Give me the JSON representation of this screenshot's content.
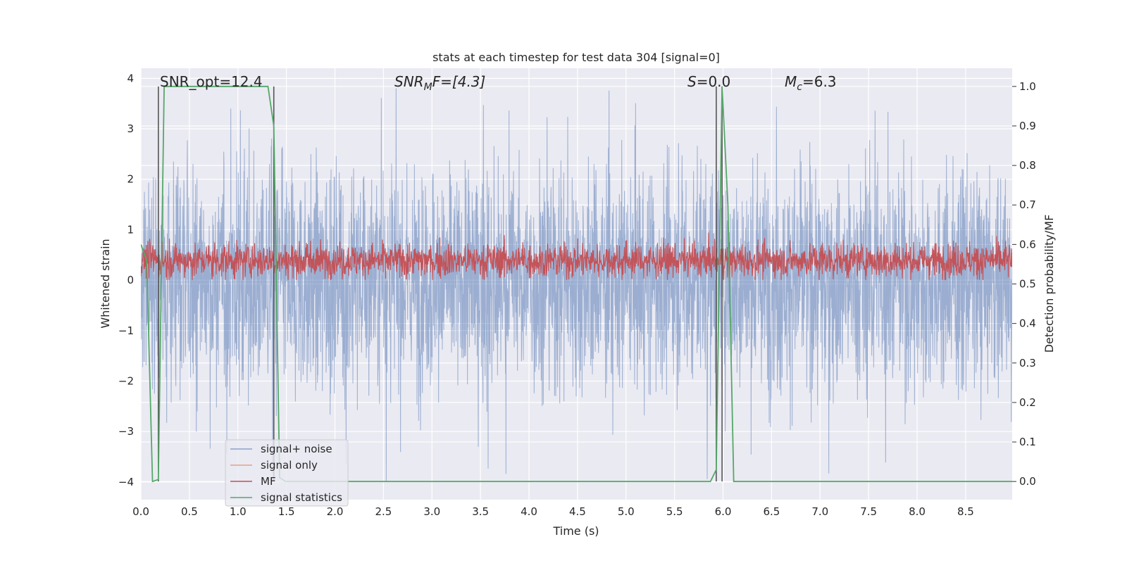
{
  "chart_data": {
    "type": "line",
    "title": "stats at each timestep for test data 304 [signal=0]",
    "xlabel": "Time (s)",
    "ylabel": "Whitened strain",
    "y2label": "Detection probability/MF",
    "xlim": [
      0.0,
      8.98
    ],
    "ylim": [
      -4.35,
      4.2
    ],
    "y2lim": [
      -0.046,
      1.046
    ],
    "x_ticks": [
      "0.0",
      "0.5",
      "1.0",
      "1.5",
      "2.0",
      "2.5",
      "3.0",
      "3.5",
      "4.0",
      "4.5",
      "5.0",
      "5.5",
      "6.0",
      "6.5",
      "7.0",
      "7.5",
      "8.0",
      "8.5"
    ],
    "y_ticks": [
      "−4",
      "−3",
      "−2",
      "−1",
      "0",
      "1",
      "2",
      "3",
      "4"
    ],
    "y2_ticks": [
      "0.0",
      "0.1",
      "0.2",
      "0.3",
      "0.4",
      "0.5",
      "0.6",
      "0.7",
      "0.8",
      "0.9",
      "1.0"
    ],
    "grid": true,
    "legend_position": "lower-left",
    "annotations": {
      "snr_opt": "SNR_opt=12.4",
      "snr_mf_base": "SNR",
      "snr_mf_sub": "M",
      "snr_mf_tail": "F=[4.3]",
      "s_italic": "S",
      "s_value": "=0.0",
      "mc_base": "M",
      "mc_sub": "c",
      "mc_value": "=6.3"
    },
    "colors": {
      "signal_noise": "#4c72b0",
      "signal_only": "#dd8452",
      "mf": "#c44e52",
      "signal_statistics": "#55a868",
      "plot_background": "#eaeaf2",
      "vline": "#555555"
    },
    "series": [
      {
        "name": "signal+ noise",
        "axis": "left",
        "kind": "dense_noise",
        "x_range": [
          0.0,
          8.98
        ],
        "typical_min": -2.4,
        "typical_max": 2.4,
        "extreme_min": -4.0,
        "extreme_max": 3.8
      },
      {
        "name": "signal only",
        "axis": "left",
        "points": []
      },
      {
        "name": "MF",
        "axis": "right",
        "kind": "dense_noise",
        "x_range": [
          0.0,
          8.98
        ],
        "typical_min": 0.52,
        "typical_max": 0.6,
        "extreme_min": 0.51,
        "extreme_max": 0.63
      },
      {
        "name": "signal statistics",
        "axis": "right",
        "x": [
          0.0,
          0.06,
          0.12,
          0.18,
          0.24,
          1.31,
          1.37,
          1.43,
          1.49,
          5.87,
          5.93,
          5.99,
          6.05,
          6.11,
          8.98
        ],
        "y": [
          0.6,
          0.56,
          0.0,
          0.005,
          1.0,
          1.0,
          0.9,
          0.01,
          0.0,
          0.0,
          0.03,
          1.0,
          0.7,
          0.0,
          0.0
        ]
      }
    ],
    "vertical_lines": [
      0.18,
      1.37,
      5.93,
      5.99
    ]
  }
}
